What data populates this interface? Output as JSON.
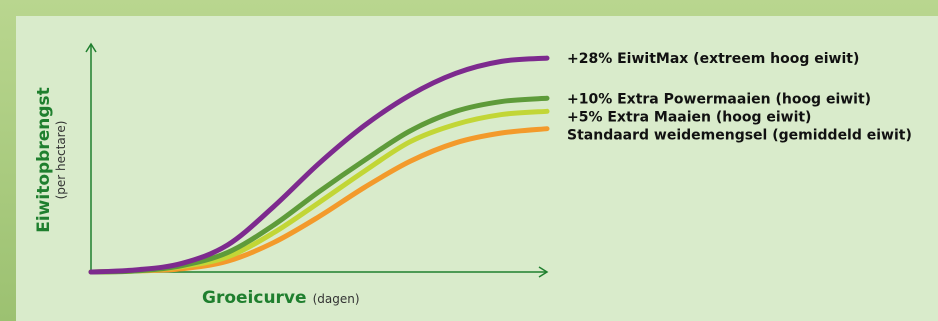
{
  "chart_data": {
    "type": "line",
    "xlabel": "Groeicurve",
    "xlabel_unit": "(dagen)",
    "ylabel": "Eiwitopbrengst",
    "ylabel_unit": "(per hectare)",
    "grid": false,
    "legend_placement": "right, at line ends",
    "x": [
      0,
      1,
      2,
      3,
      4,
      5,
      6,
      7,
      8,
      9,
      10
    ],
    "series": [
      {
        "name": "+28% EiwitMax (extreem hoog eiwit)",
        "color": "#7d2a8e",
        "values": [
          0,
          2,
          8,
          25,
          60,
          100,
          135,
          163,
          183,
          194,
          197
        ]
      },
      {
        "name": "+10% Extra Powermaaien (hoog eiwit)",
        "color": "#5e9b3a",
        "values": [
          0,
          1,
          6,
          18,
          43,
          74,
          103,
          130,
          148,
          157,
          160
        ]
      },
      {
        "name": "+5% Extra Maaien (hoog eiwit)",
        "color": "#c2d636",
        "values": [
          0,
          1,
          5,
          14,
          36,
          64,
          93,
          120,
          136,
          145,
          148
        ]
      },
      {
        "name": "Standaard weidemengsel (gemiddeld eiwit)",
        "color": "#f39a2b",
        "values": [
          0,
          1,
          3,
          10,
          27,
          51,
          78,
          102,
          119,
          128,
          132
        ]
      }
    ],
    "ylim": [
      0,
      210
    ],
    "xlim": [
      0,
      10
    ]
  },
  "colors": {
    "frame": "#a7c97f",
    "panel": "#d9ebcb",
    "axis": "#1f7f2e",
    "axis_title": "#1f7f2e"
  }
}
